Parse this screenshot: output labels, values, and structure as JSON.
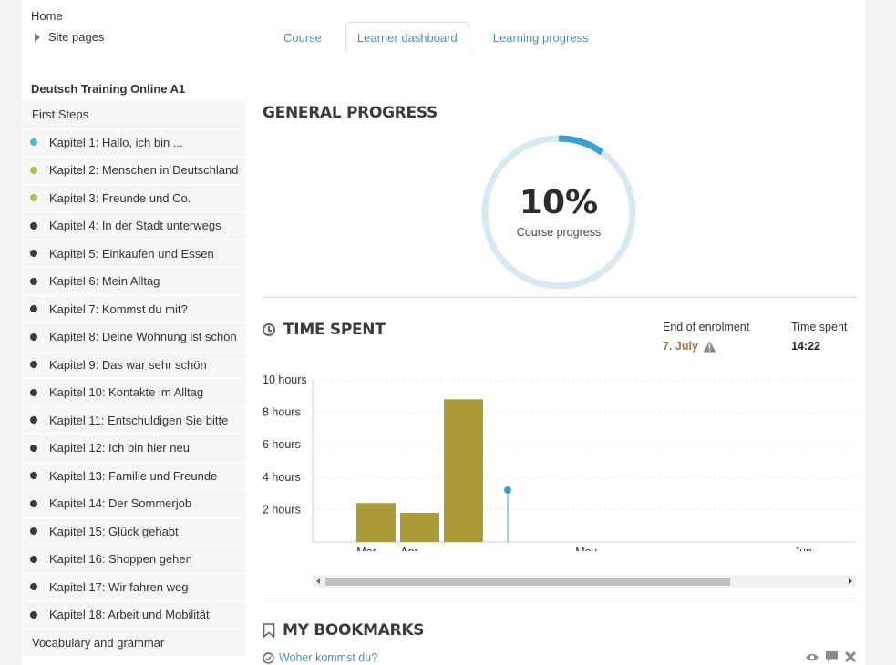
{
  "nav": {
    "home": "Home",
    "site_pages": "Site pages"
  },
  "tabs": [
    {
      "label": "Course",
      "active": false
    },
    {
      "label": "Learner dashboard",
      "active": true
    },
    {
      "label": "Learning progress",
      "active": false
    }
  ],
  "sidebar": {
    "title": "Deutsch Training Online A1",
    "section_first": "First Steps",
    "section_last": "Vocabulary and grammar",
    "chapters": [
      {
        "label": "Kapitel 1: Hallo, ich bin ...",
        "status_color": "#4fb8e0"
      },
      {
        "label": "Kapitel 2: Menschen in Deutschland",
        "status_color": "#a8c93a"
      },
      {
        "label": "Kapitel 3: Freunde und Co.",
        "status_color": "#a8c93a"
      },
      {
        "label": "Kapitel 4: In der Stadt unterwegs",
        "status_color": "#3a3a3a"
      },
      {
        "label": "Kapitel 5: Einkaufen und Essen",
        "status_color": "#3a3a3a"
      },
      {
        "label": "Kapitel 6: Mein Alltag",
        "status_color": "#3a3a3a"
      },
      {
        "label": "Kapitel 7: Kommst du mit?",
        "status_color": "#3a3a3a"
      },
      {
        "label": "Kapitel 8: Deine Wohnung ist schön",
        "status_color": "#3a3a3a"
      },
      {
        "label": "Kapitel 9: Das war sehr schön",
        "status_color": "#3a3a3a"
      },
      {
        "label": "Kapitel 10: Kontakte im Alltag",
        "status_color": "#3a3a3a"
      },
      {
        "label": "Kapitel 11: Entschuldigen Sie bitte",
        "status_color": "#3a3a3a"
      },
      {
        "label": "Kapitel 12: Ich bin hier neu",
        "status_color": "#3a3a3a"
      },
      {
        "label": "Kapitel 13: Familie und Freunde",
        "status_color": "#3a3a3a"
      },
      {
        "label": "Kapitel 14: Der Sommerjob",
        "status_color": "#3a3a3a"
      },
      {
        "label": "Kapitel 15: Glück gehabt",
        "status_color": "#3a3a3a"
      },
      {
        "label": "Kapitel 16: Shoppen gehen",
        "status_color": "#3a3a3a"
      },
      {
        "label": "Kapitel 17: Wir fahren weg",
        "status_color": "#3a3a3a"
      },
      {
        "label": "Kapitel 18: Arbeit und Mobilität",
        "status_color": "#3a3a3a"
      }
    ]
  },
  "general_progress": {
    "title": "GENERAL PROGRESS",
    "value_text": "10%",
    "progress_fraction": 0.1,
    "label": "Course progress",
    "ring_color": "#d6eaf6",
    "fill_color": "#3a9fd6"
  },
  "time_spent": {
    "title": "TIME SPENT",
    "end_of_enrolment_label": "End of enrolment",
    "end_of_enrolment_value": "7. July",
    "time_spent_label": "Time spent",
    "time_spent_value": "14:22",
    "icons": {
      "clock": "clock-icon",
      "warning": "warning-icon"
    }
  },
  "chart_data": {
    "type": "bar",
    "x_ticks": [
      "Mar",
      "Apr",
      "May",
      "Jun"
    ],
    "bars": [
      {
        "month": "Mar",
        "hours": 2.4
      },
      {
        "month": "Apr",
        "hours": 1.8
      },
      {
        "month": "Apr-May",
        "hours": 8.8
      }
    ],
    "y_ticks": [
      "2 hours",
      "4 hours",
      "6 hours",
      "8 hours",
      "10 hours"
    ],
    "ylim": [
      0,
      10
    ],
    "bar_color": "#aa9a38",
    "marker_color": "#3a9fd6",
    "grid": true
  },
  "bookmarks": {
    "title": "MY BOOKMARKS",
    "items": [
      {
        "label": "Woher kommst du?"
      }
    ]
  }
}
